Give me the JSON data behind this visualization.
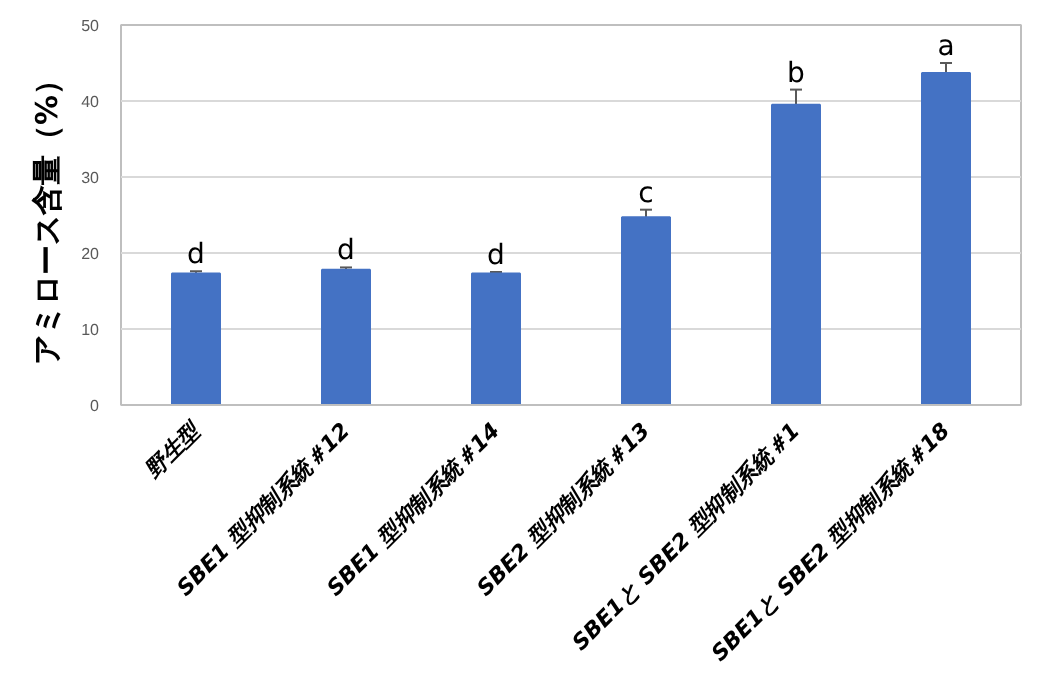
{
  "chart_data": {
    "type": "bar",
    "ylabel": "アミロース含量（%）",
    "categories": [
      "野生型",
      "SBE1 型抑制系統＃12",
      "SBE1 型抑制系統＃14",
      "SBE2 型抑制系統＃13",
      "SBE1と SBE2 型抑制系統＃1",
      "SBE1と SBE2 型抑制系統＃18"
    ],
    "values": [
      17.3,
      17.8,
      17.3,
      24.7,
      39.5,
      43.7
    ],
    "errors": [
      0.3,
      0.3,
      0.2,
      1.0,
      2.0,
      1.3
    ],
    "color": "#4472c4",
    "ylim": [
      0,
      50
    ],
    "yticks": [
      0,
      10,
      20,
      30,
      40,
      50
    ],
    "grid": "y",
    "annotations": [
      {
        "text": "d",
        "x": "野生型",
        "y": 17.6
      },
      {
        "text": "d",
        "x": "SBE1 型抑制系統＃12",
        "y": 18.1
      },
      {
        "text": "d",
        "x": "SBE1 型抑制系統＃14",
        "y": 17.5
      },
      {
        "text": "c",
        "x": "SBE2 型抑制系統＃13",
        "y": 25.7
      },
      {
        "text": "b",
        "x": "SBE1と SBE2 型抑制系統＃1",
        "y": 41.5
      },
      {
        "text": "a",
        "x": "SBE1と SBE2 型抑制系統＃18",
        "y": 45.0
      }
    ]
  }
}
